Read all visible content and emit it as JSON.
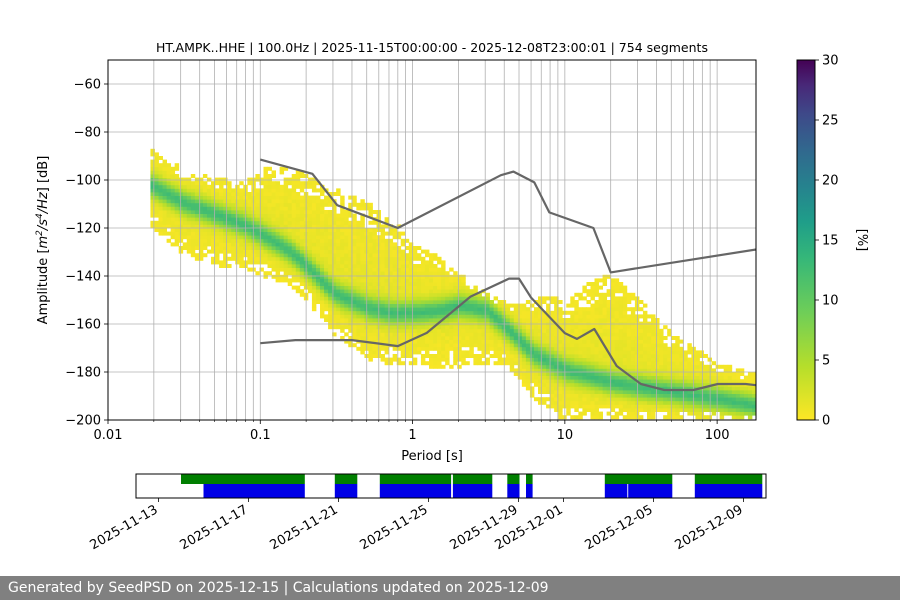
{
  "footer": {
    "generated_text": "Generated by SeedPSD on 2025-12-15 | Calculations updated on 2025-12-09"
  },
  "chart_data": [
    {
      "type": "heatmap",
      "title": "HT.AMPK..HHE | 100.0Hz | 2025-11-15T00:00:00 - 2025-12-08T23:00:01 | 754 segments",
      "xlabel": "Period [s]",
      "ylabel_prefix": "Amplitude [",
      "ylabel_suffix": "] [dB]",
      "ylabel_math": {
        "m": "m",
        "exp2": "2",
        "s": "/s",
        "exp4": "4",
        "hz": "/Hz"
      },
      "x_scale": "log",
      "xlim": [
        0.01,
        180
      ],
      "ylim": [
        -200,
        -50
      ],
      "grid": true,
      "x_ticks": [
        {
          "value": 0.01,
          "label": "0.01"
        },
        {
          "value": 0.1,
          "label": "0.1"
        },
        {
          "value": 1,
          "label": "1"
        },
        {
          "value": 10,
          "label": "10"
        },
        {
          "value": 100,
          "label": "100"
        }
      ],
      "y_ticks": [
        {
          "value": -60,
          "label": "−60"
        },
        {
          "value": -80,
          "label": "−80"
        },
        {
          "value": -100,
          "label": "−100"
        },
        {
          "value": -120,
          "label": "−120"
        },
        {
          "value": -140,
          "label": "−140"
        },
        {
          "value": -160,
          "label": "−160"
        },
        {
          "value": -180,
          "label": "−180"
        },
        {
          "value": -200,
          "label": "−200"
        }
      ],
      "colorbar": {
        "label": "[%]",
        "range": [
          0,
          30
        ],
        "colormap": "viridis_reversed",
        "ticks": [
          {
            "value": 0,
            "label": "0"
          },
          {
            "value": 5,
            "label": "5"
          },
          {
            "value": 10,
            "label": "10"
          },
          {
            "value": 15,
            "label": "15"
          },
          {
            "value": 20,
            "label": "20"
          },
          {
            "value": 25,
            "label": "25"
          },
          {
            "value": 30,
            "label": "30"
          }
        ]
      },
      "density_ridge": {
        "period": [
          0.019,
          0.03,
          0.05,
          0.08,
          0.11,
          0.15,
          0.2,
          0.3,
          0.5,
          0.7,
          1.0,
          1.5,
          2.0,
          3.0,
          4.0,
          5.0,
          6.0,
          8.0,
          10,
          15,
          20,
          30,
          50,
          100,
          180
        ],
        "db": [
          -103,
          -110,
          -115,
          -120,
          -125,
          -130,
          -137,
          -148,
          -154,
          -156,
          -156,
          -155,
          -153,
          -155,
          -162,
          -168,
          -173,
          -177,
          -180,
          -183,
          -185,
          -187,
          -189,
          -192,
          -195
        ],
        "upper_db": [
          -88,
          -96,
          -100,
          -101,
          -95,
          -96,
          -98,
          -104,
          -110,
          -116,
          -128,
          -133,
          -140,
          -148,
          -152,
          -152,
          -150,
          -148,
          -152,
          -142,
          -140,
          -150,
          -165,
          -177,
          -182
        ],
        "lower_db": [
          -120,
          -130,
          -135,
          -137,
          -140,
          -143,
          -150,
          -164,
          -174,
          -176,
          -176,
          -178,
          -177,
          -176,
          -178,
          -183,
          -190,
          -196,
          -200,
          -200,
          -200,
          -200,
          -200,
          -200,
          -200
        ]
      },
      "noise_models": [
        {
          "name": "high",
          "color": "#666666",
          "period": [
            0.1,
            0.22,
            0.32,
            0.8,
            3.8,
            4.6,
            6.3,
            7.9,
            15.4,
            20,
            354.8
          ],
          "db": [
            -91.5,
            -97.4,
            -110.5,
            -120,
            -98,
            -96.5,
            -101,
            -113.5,
            -120,
            -138.5,
            -126
          ]
        },
        {
          "name": "low",
          "color": "#666666",
          "period": [
            0.1,
            0.17,
            0.4,
            0.8,
            1.24,
            2.4,
            4.3,
            5.0,
            6.0,
            10.0,
            12.0,
            15.6,
            21.9,
            31.6,
            45,
            70,
            101,
            154,
            180
          ],
          "db": [
            -168,
            -166.7,
            -166.7,
            -169.2,
            -163.7,
            -148.6,
            -141.1,
            -141.1,
            -149,
            -163.8,
            -166.2,
            -162.1,
            -177.5,
            -185,
            -187.5,
            -187.5,
            -185,
            -185,
            -185.5
          ]
        }
      ]
    },
    {
      "type": "timeline",
      "date_ticks": [
        "2025-11-13",
        "2025-11-17",
        "2025-11-21",
        "2025-11-25",
        "2025-11-29",
        "2025-12-01",
        "2025-12-05",
        "2025-12-09"
      ],
      "date_range": [
        "2025-11-12",
        "2025-12-10"
      ],
      "green_color": "#007f00",
      "blue_color": "#0000e6",
      "green_segments": [
        [
          "2025-11-14T00",
          "2025-11-19T12"
        ],
        [
          "2025-11-20T20",
          "2025-11-21T20"
        ],
        [
          "2025-11-22T20",
          "2025-11-26T00"
        ],
        [
          "2025-11-26T02",
          "2025-11-27T20"
        ],
        [
          "2025-11-28T12",
          "2025-11-29T01"
        ],
        [
          "2025-11-29T08",
          "2025-11-29T15"
        ],
        [
          "2025-12-02T20",
          "2025-12-05T20"
        ],
        [
          "2025-12-06T20",
          "2025-12-09T20"
        ]
      ],
      "blue_segments": [
        [
          "2025-11-15T00",
          "2025-11-19T12"
        ],
        [
          "2025-11-20T20",
          "2025-11-21T20"
        ],
        [
          "2025-11-22T20",
          "2025-11-26T00"
        ],
        [
          "2025-11-26T02",
          "2025-11-27T20"
        ],
        [
          "2025-11-28T12",
          "2025-11-29T01"
        ],
        [
          "2025-11-29T08",
          "2025-11-29T15"
        ],
        [
          "2025-12-02T20",
          "2025-12-03T20"
        ],
        [
          "2025-12-03T21",
          "2025-12-05T20"
        ],
        [
          "2025-12-06T20",
          "2025-12-09T20"
        ]
      ]
    }
  ]
}
